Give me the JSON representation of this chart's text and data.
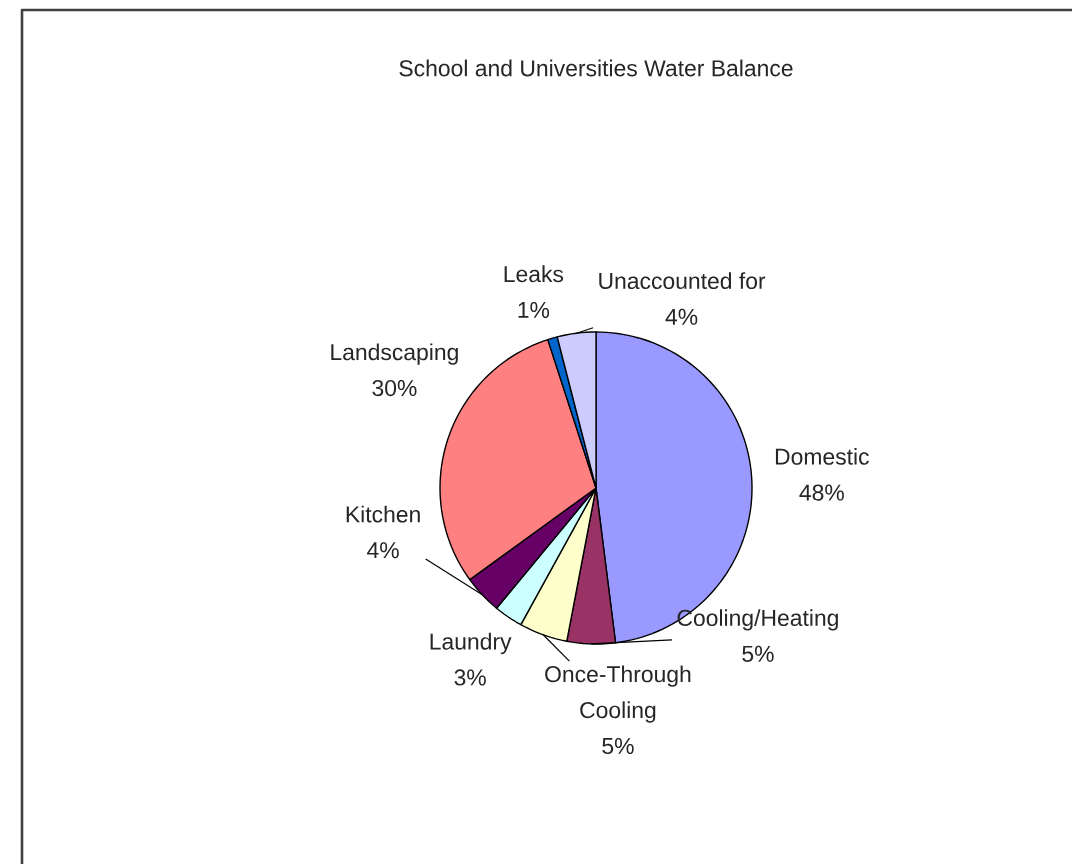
{
  "chart_data": {
    "type": "pie",
    "title": "School and Universities Water Balance",
    "categories": [
      "Domestic",
      "Cooling/Heating",
      "Once-Through Cooling",
      "Laundry",
      "Kitchen",
      "Landscaping",
      "Leaks",
      "Unaccounted for"
    ],
    "values": [
      48,
      5,
      5,
      3,
      4,
      30,
      1,
      4
    ],
    "value_labels": [
      "48%",
      "5%",
      "5%",
      "3%",
      "4%",
      "30%",
      "1%",
      "4%"
    ],
    "colors": [
      "#9999ff",
      "#993366",
      "#ffffcc",
      "#ccffff",
      "#660066",
      "#ff8080",
      "#0066cc",
      "#ccccff"
    ]
  }
}
